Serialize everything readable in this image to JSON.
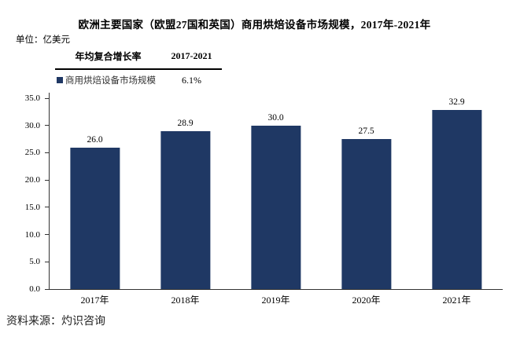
{
  "page": {
    "unit_label": "单位：亿美元",
    "source": "资料来源：灼识咨询"
  },
  "legend_table": {
    "col1_header": "年均复合增长率",
    "col2_header": "2017-2021",
    "row_label": "商用烘焙设备市场规模",
    "row_value": "6.1%",
    "marker_color": "#1F3864"
  },
  "chart_data": {
    "type": "bar",
    "title": "欧洲主要国家（欧盟27国和英国）商用烘焙设备市场规模，2017年-2021年",
    "unit": "亿美元",
    "series_name": "商用烘焙设备市场规模",
    "cagr_2017_2021": "6.1%",
    "categories": [
      "2017年",
      "2018年",
      "2019年",
      "2020年",
      "2021年"
    ],
    "values": [
      26.0,
      28.9,
      30.0,
      27.5,
      32.9
    ],
    "value_labels": [
      "26.0",
      "28.9",
      "30.0",
      "27.5",
      "32.9"
    ],
    "ylim": [
      0,
      35
    ],
    "y_tick_labels": [
      "35.0",
      "30.0",
      "25.0",
      "20.0",
      "15.0",
      "10.0",
      "5.0",
      "0.0"
    ],
    "bar_color": "#1F3864",
    "axis_color": "#333333",
    "grid": false,
    "legend_position": "top-left"
  }
}
